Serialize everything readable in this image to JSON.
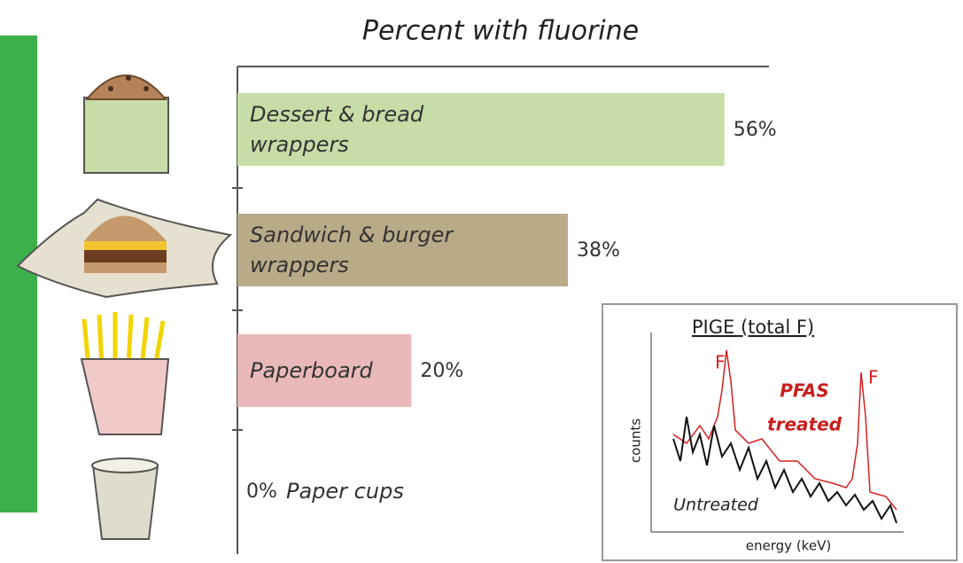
{
  "chart_data": {
    "type": "bar",
    "orientation": "horizontal",
    "title": "Percent with fluorine",
    "categories": [
      "Dessert & bread wrappers",
      "Sandwich & burger wrappers",
      "Paperboard",
      "Paper cups"
    ],
    "values": [
      56,
      38,
      20,
      0
    ],
    "value_labels": [
      "56%",
      "38%",
      "20%",
      "0%"
    ],
    "colors": [
      "#c7dca6",
      "#b9aa88",
      "#e9b9b9",
      "#d9d2c0"
    ],
    "xlim": [
      0,
      60
    ],
    "inset": {
      "title": "PIGE (total F)",
      "peak_label_1": "F",
      "peak_label_2": "F",
      "treated_label_1": "PFAS",
      "treated_label_2": "treated",
      "untreated_label": "Untreated",
      "ylabel": "counts",
      "xlabel": "energy (keV)"
    }
  }
}
